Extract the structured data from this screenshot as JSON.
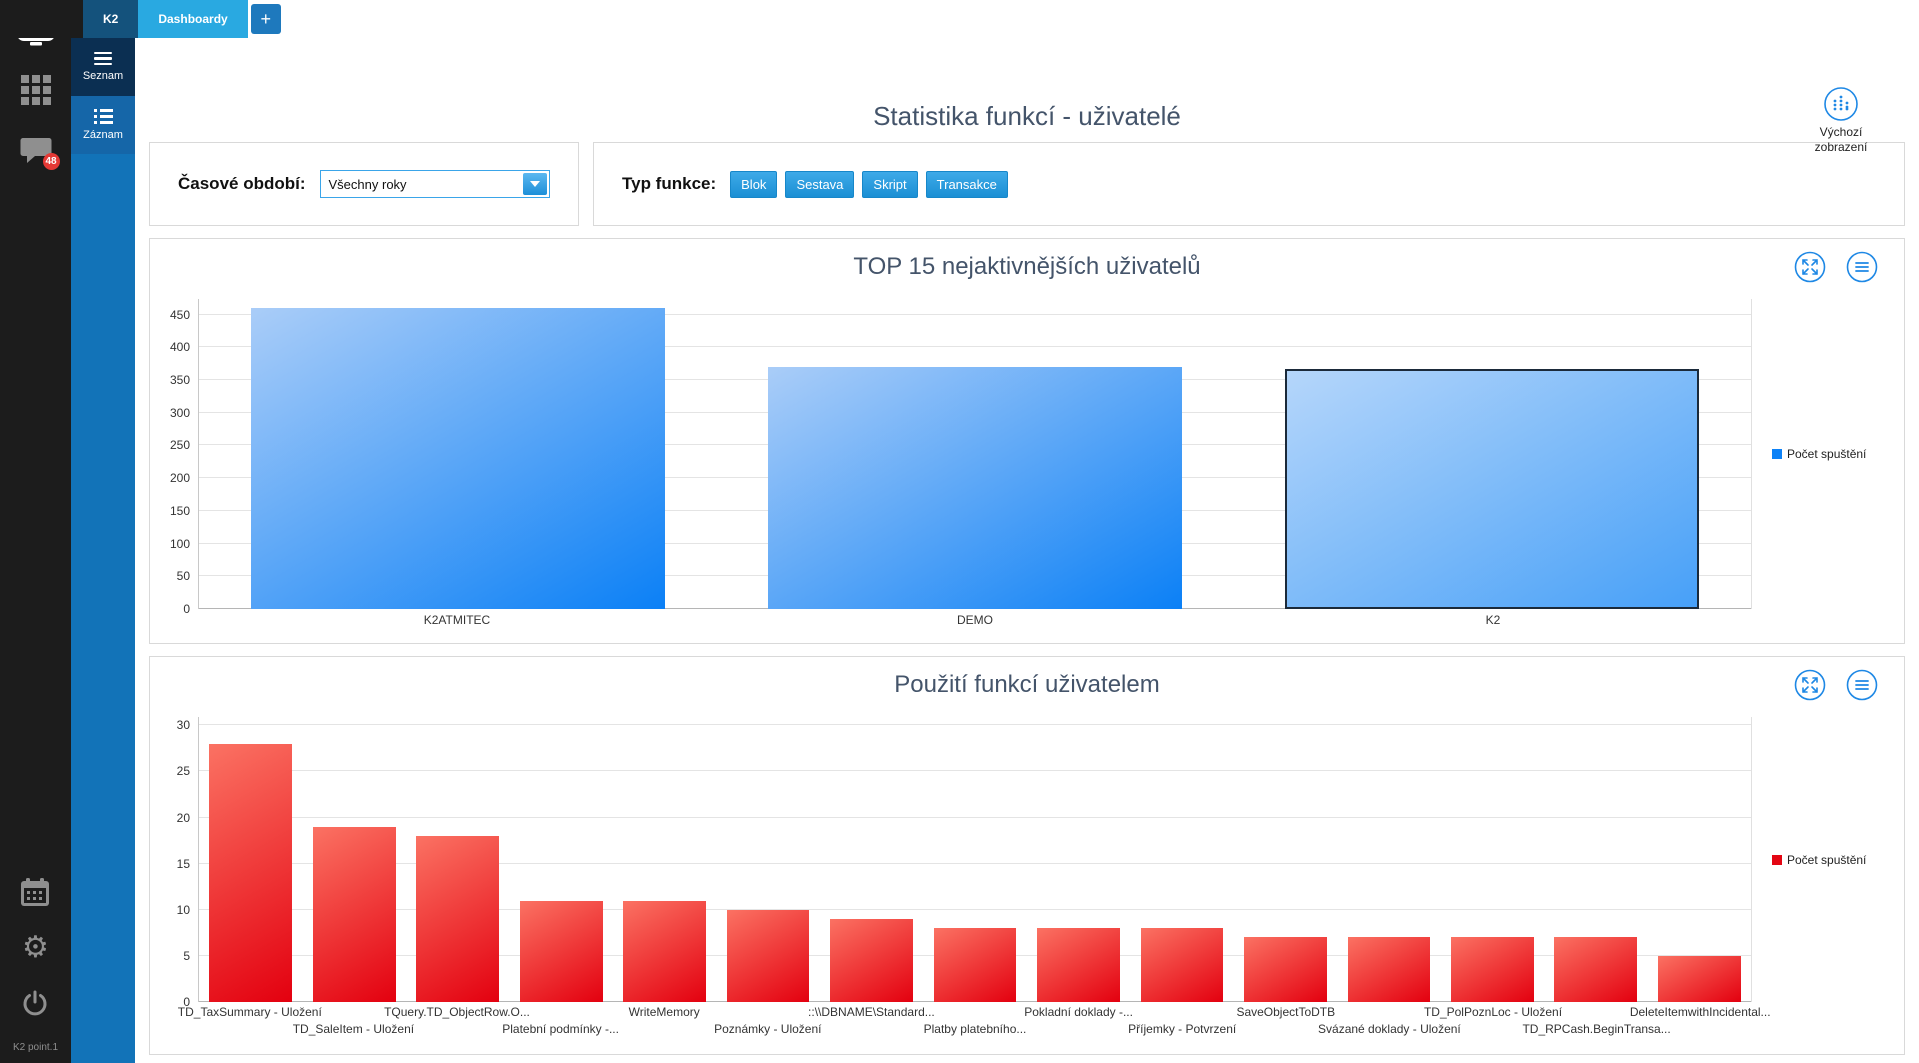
{
  "tabs": [
    {
      "label": "K2",
      "active": false
    },
    {
      "label": "Dashboardy",
      "active": true
    },
    {
      "label": "+",
      "active": false
    }
  ],
  "sidebar": {
    "chat_badge": "48",
    "footer": "K2 point.1",
    "icons": [
      "monitor-icon",
      "apps-grid-icon",
      "chat-icon",
      "calendar-icon",
      "gear-icon",
      "power-icon"
    ]
  },
  "nav": [
    {
      "label": "Seznam",
      "icon": "hamburger-icon",
      "active": true
    },
    {
      "label": "Záznam",
      "icon": "record-list-icon",
      "active": false
    }
  ],
  "header": {
    "title": "Statistika funkcí - uživatelé",
    "default_view_label": "Výchozí zobrazení"
  },
  "filters": {
    "period": {
      "label": "Časové období:",
      "value": "Všechny roky"
    },
    "function_type": {
      "label": "Typ funkce:",
      "buttons": [
        "Blok",
        "Sestava",
        "Skript",
        "Transakce"
      ]
    }
  },
  "colors": {
    "accent_blue": "#29a9e1",
    "nav_blue": "#1273b8",
    "tab_dark_blue": "#14527c",
    "title_color": "#44546a",
    "bar_blue": "#0d82f7",
    "bar_red": "#e30613",
    "icon_blue": "#1e88e5"
  },
  "chart_data": [
    {
      "type": "bar",
      "title": "TOP 15 nejaktivnějších uživatelů",
      "categories": [
        "K2ATMITEC",
        "DEMO",
        "K2"
      ],
      "values": [
        460,
        370,
        367
      ],
      "ylim": [
        0,
        450
      ],
      "ytick_step": 50,
      "grid": true,
      "legend": {
        "label": "Počet spuštění",
        "color": "#0d82f7",
        "position": "right"
      },
      "bar_gradient": [
        "#aacdf8",
        "#0b80f6"
      ],
      "selected": {
        "index": 2,
        "gradient": [
          "#b5d6fa",
          "#47a0f8"
        ],
        "border": "#1b2a3a"
      },
      "stagger_labels": false
    },
    {
      "type": "bar",
      "title": "Použití funkcí uživatelem",
      "categories": [
        "TD_TaxSummary - Uložení",
        "TD_SaleItem - Uložení",
        "TQuery.TD_ObjectRow.O...",
        "Platební podmínky -...",
        "WriteMemory",
        "Poznámky - Uložení",
        "::\\\\DBNAME\\Standard...",
        "Platby platebního...",
        "Pokladní doklady -...",
        "Příjemky - Potvrzení",
        "SaveObjectToDTB",
        "Svázané doklady - Uložení",
        "TD_PolPoznLoc - Uložení",
        "TD_RPCash.BeginTransa...",
        "DeleteItemwithIncidental..."
      ],
      "values": [
        28,
        19,
        18,
        11,
        11,
        10,
        9,
        8,
        8,
        8,
        7,
        7,
        7,
        7,
        5
      ],
      "ylim": [
        0,
        30
      ],
      "ytick_step": 5,
      "grid": true,
      "legend": {
        "label": "Počet spuštění",
        "color": "#e30613",
        "position": "right"
      },
      "bar_gradient": [
        "#fb7263",
        "#e3000f"
      ],
      "stagger_labels": true
    }
  ]
}
